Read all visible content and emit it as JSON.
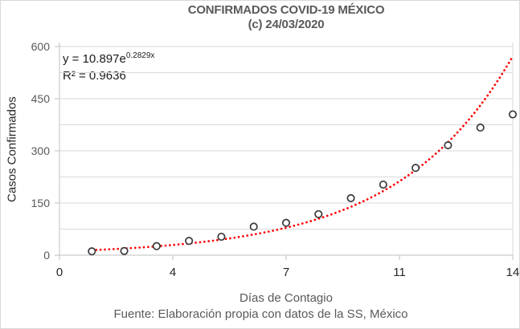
{
  "chart": {
    "title_line1": "CONFIRMADOS COVID-19 MÉXICO",
    "title_line2": "(c) 24/03/2020",
    "equation_prefix": "y = 10.897e",
    "equation_exponent": "0.2829x",
    "r_squared": "R² = 0.9636",
    "y_axis_title": "Casos Confirmados",
    "x_axis_title": "Días de Contagio",
    "source_note": "Fuente: Elaboración propia con datos de la SS, México"
  },
  "chart_data": {
    "type": "scatter",
    "title": "CONFIRMADOS COVID-19 MÉXICO (c) 24/03/2020",
    "xlabel": "Días de Contagio",
    "ylabel": "Casos Confirmados",
    "x": [
      1,
      2,
      3,
      4,
      5,
      6,
      7,
      8,
      9,
      10,
      11,
      12,
      13,
      14
    ],
    "y": [
      11,
      12,
      26,
      41,
      53,
      82,
      93,
      118,
      164,
      203,
      251,
      316,
      367,
      405
    ],
    "xlim": [
      0,
      14
    ],
    "ylim": [
      0,
      600
    ],
    "x_tick_values": [
      0,
      3.5,
      7,
      10.5,
      14
    ],
    "x_tick_labels": [
      "0",
      "4",
      "7",
      "11",
      "14"
    ],
    "y_tick_values": [
      0,
      150,
      300,
      450,
      600
    ],
    "y_tick_labels": [
      "0",
      "150",
      "300",
      "450",
      "600"
    ],
    "minor_gridline_step": 75,
    "grid": "horizontal-minor",
    "legend": "none",
    "trendline": {
      "type": "exponential",
      "a": 10.897,
      "b": 0.2829,
      "r2": 0.9636,
      "x_start": 1,
      "x_end": 14,
      "style": "dotted"
    },
    "marker": {
      "shape": "open-circle",
      "radius": 4.2
    },
    "colors": {
      "trendline": "#ff0000",
      "marker_stroke": "#3a3a3a",
      "marker_fill": "#ffffff",
      "gridline": "#dadada",
      "axis": "#bfbfbf",
      "right_border": "#d9d9d9",
      "title": "#595959",
      "x_tick_text": "#262626",
      "y_tick_text": "#595959"
    }
  }
}
